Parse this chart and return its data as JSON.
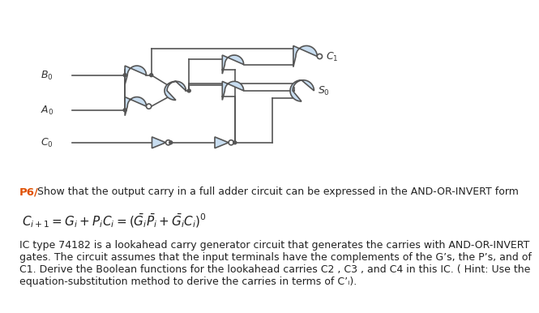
{
  "bg_color": "#ffffff",
  "gate_fill": "#c8ddf0",
  "gate_edge": "#555555",
  "wire_color": "#555555",
  "label_color": "#333333",
  "p6_color": "#e05000",
  "para_lines": [
    "IC type 74182 is a lookahead carry generator circuit that generates the carries with AND-OR-INVERT",
    "gates. The circuit assumes that the input terminals have the complements of the G’s, the P’s, and of",
    "C1. Derive the Boolean functions for the lookahead carries C2 , C3 , and C4 in this IC. ( Hint: Use the",
    "equation-substitution method to derive the carries in terms of C’ᵢ)."
  ]
}
